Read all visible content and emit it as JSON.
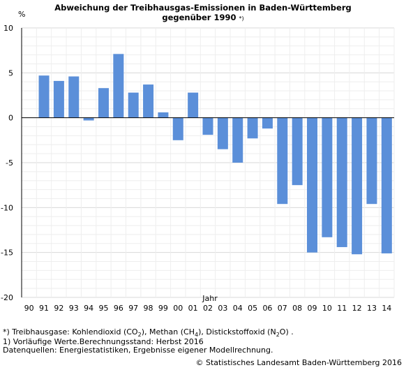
{
  "chart_data": {
    "type": "bar",
    "title_line1": "Abweichung der Treibhausgas-Emissionen in Baden-Württemberg",
    "title_line2": "gegenüber 1990",
    "title_note": "*)",
    "ylabel": "%",
    "xlabel": "Jahr",
    "ylim": [
      -20,
      10
    ],
    "yticks": [
      10,
      5,
      0,
      -5,
      -10,
      -15,
      -20
    ],
    "grid": true,
    "legend": "none",
    "color": "#5b8fd9",
    "categories": [
      "90",
      "91",
      "92",
      "93",
      "94",
      "95",
      "96",
      "97",
      "98",
      "99",
      "00",
      "01",
      "02",
      "03",
      "04",
      "05",
      "06",
      "07",
      "08",
      "09",
      "10",
      "11",
      "12",
      "13",
      "14"
    ],
    "values": [
      0,
      4.7,
      4.1,
      4.6,
      -0.3,
      3.3,
      7.1,
      2.8,
      3.7,
      0.6,
      -2.5,
      2.8,
      -1.9,
      -3.5,
      -5.0,
      -2.3,
      -1.2,
      -9.6,
      -7.5,
      -15.0,
      -13.3,
      -14.4,
      -15.2,
      -9.6,
      -15.1
    ]
  },
  "footnotes": {
    "line1_prefix": "*) Treibhausgase: Kohlendioxid (CO",
    "line1_sub1": "2",
    "line1_mid1": "), Methan (CH",
    "line1_sub2": "4",
    "line1_mid2": "), Distickstoffoxid (N",
    "line1_sub3": "2",
    "line1_end": "O) .",
    "line2": "1) Vorläufige Werte.Berechnungsstand: Herbst 2016",
    "line3": "Datenquellen: Energiestatistiken, Ergebnisse eigener Modellrechnung."
  },
  "copyright": "© Statistisches Landesamt Baden-Württemberg 2016"
}
